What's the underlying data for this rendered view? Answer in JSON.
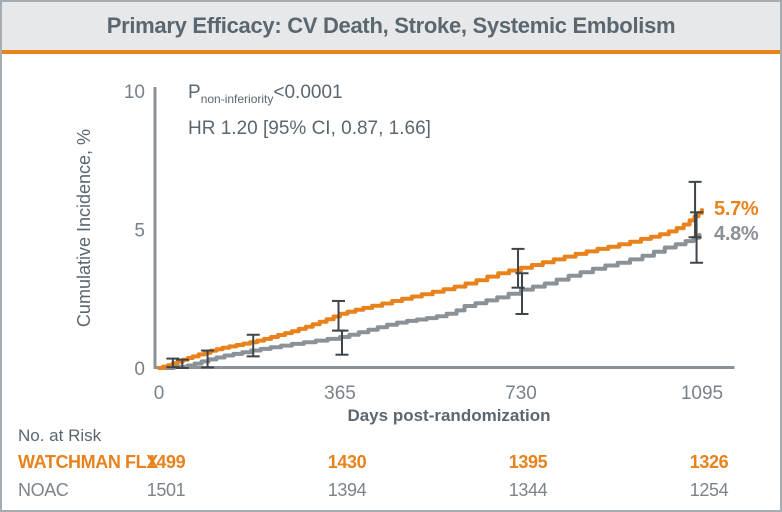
{
  "header": {
    "title": "Primary Efficacy: CV Death, Stroke, Systemic Embolism"
  },
  "stats": {
    "p_prefix": "P",
    "p_subscript": "non-inferiority",
    "p_value": "<0.0001",
    "hr_line": "HR 1.20 [95% CI, 0.87, 1.66]"
  },
  "chart_data": {
    "type": "line",
    "subtype": "kaplan-meier-step",
    "title": "Primary Efficacy: CV Death, Stroke, Systemic Embolism",
    "xlabel": "Days post-randomization",
    "ylabel": "Cumulative Incidence, %",
    "xlim": [
      0,
      1160
    ],
    "ylim": [
      0,
      10
    ],
    "x_ticks": [
      0,
      365,
      730,
      1095
    ],
    "y_ticks": [
      0,
      5,
      10
    ],
    "grid": false,
    "legend_position": "none",
    "series": [
      {
        "name": "WATCHMAN FLX",
        "color": "#E8821D",
        "end_label": "5.7%",
        "points": [
          [
            0,
            0
          ],
          [
            8,
            0.05
          ],
          [
            18,
            0.1
          ],
          [
            28,
            0.17
          ],
          [
            38,
            0.23
          ],
          [
            48,
            0.3
          ],
          [
            58,
            0.36
          ],
          [
            68,
            0.42
          ],
          [
            80,
            0.49
          ],
          [
            92,
            0.55
          ],
          [
            104,
            0.62
          ],
          [
            116,
            0.68
          ],
          [
            128,
            0.73
          ],
          [
            142,
            0.78
          ],
          [
            156,
            0.83
          ],
          [
            170,
            0.88
          ],
          [
            184,
            0.93
          ],
          [
            198,
            0.99
          ],
          [
            212,
            1.05
          ],
          [
            226,
            1.12
          ],
          [
            240,
            1.19
          ],
          [
            254,
            1.26
          ],
          [
            268,
            1.33
          ],
          [
            282,
            1.41
          ],
          [
            296,
            1.49
          ],
          [
            310,
            1.58
          ],
          [
            324,
            1.67
          ],
          [
            338,
            1.76
          ],
          [
            352,
            1.86
          ],
          [
            365,
            1.96
          ],
          [
            380,
            2.03
          ],
          [
            396,
            2.1
          ],
          [
            412,
            2.17
          ],
          [
            430,
            2.25
          ],
          [
            450,
            2.33
          ],
          [
            470,
            2.42
          ],
          [
            490,
            2.5
          ],
          [
            510,
            2.58
          ],
          [
            530,
            2.66
          ],
          [
            552,
            2.75
          ],
          [
            574,
            2.84
          ],
          [
            596,
            2.94
          ],
          [
            618,
            3.05
          ],
          [
            640,
            3.17
          ],
          [
            662,
            3.3
          ],
          [
            684,
            3.42
          ],
          [
            706,
            3.52
          ],
          [
            730,
            3.62
          ],
          [
            752,
            3.72
          ],
          [
            774,
            3.82
          ],
          [
            796,
            3.92
          ],
          [
            818,
            4.02
          ],
          [
            840,
            4.12
          ],
          [
            862,
            4.21
          ],
          [
            884,
            4.3
          ],
          [
            906,
            4.38
          ],
          [
            928,
            4.47
          ],
          [
            950,
            4.56
          ],
          [
            972,
            4.66
          ],
          [
            992,
            4.74
          ],
          [
            1010,
            4.83
          ],
          [
            1028,
            4.93
          ],
          [
            1044,
            5.05
          ],
          [
            1058,
            5.18
          ],
          [
            1070,
            5.33
          ],
          [
            1080,
            5.48
          ],
          [
            1088,
            5.6
          ],
          [
            1095,
            5.7
          ]
        ]
      },
      {
        "name": "NOAC",
        "color": "#8A9197",
        "end_label": "4.8%",
        "points": [
          [
            0,
            0
          ],
          [
            30,
            0.04
          ],
          [
            58,
            0.09
          ],
          [
            72,
            0.16
          ],
          [
            86,
            0.24
          ],
          [
            100,
            0.31
          ],
          [
            116,
            0.38
          ],
          [
            132,
            0.45
          ],
          [
            150,
            0.51
          ],
          [
            168,
            0.57
          ],
          [
            186,
            0.63
          ],
          [
            205,
            0.69
          ],
          [
            225,
            0.75
          ],
          [
            246,
            0.81
          ],
          [
            268,
            0.87
          ],
          [
            292,
            0.93
          ],
          [
            316,
            0.99
          ],
          [
            340,
            1.05
          ],
          [
            365,
            1.12
          ],
          [
            384,
            1.2
          ],
          [
            403,
            1.29
          ],
          [
            422,
            1.38
          ],
          [
            441,
            1.47
          ],
          [
            460,
            1.56
          ],
          [
            480,
            1.64
          ],
          [
            500,
            1.7
          ],
          [
            520,
            1.75
          ],
          [
            540,
            1.8
          ],
          [
            560,
            1.87
          ],
          [
            580,
            1.96
          ],
          [
            600,
            2.08
          ],
          [
            616,
            2.24
          ],
          [
            638,
            2.34
          ],
          [
            660,
            2.44
          ],
          [
            682,
            2.55
          ],
          [
            705,
            2.68
          ],
          [
            730,
            2.83
          ],
          [
            754,
            2.94
          ],
          [
            778,
            3.05
          ],
          [
            802,
            3.19
          ],
          [
            826,
            3.33
          ],
          [
            850,
            3.46
          ],
          [
            875,
            3.58
          ],
          [
            900,
            3.7
          ],
          [
            925,
            3.8
          ],
          [
            950,
            3.92
          ],
          [
            975,
            4.05
          ],
          [
            998,
            4.2
          ],
          [
            1020,
            4.35
          ],
          [
            1042,
            4.47
          ],
          [
            1062,
            4.58
          ],
          [
            1078,
            4.7
          ],
          [
            1090,
            4.8
          ]
        ]
      }
    ],
    "error_bars": [
      {
        "x": 28,
        "low": 0.03,
        "high": 0.34
      },
      {
        "x": 47,
        "low": 0.0,
        "high": 0.3
      },
      {
        "x": 98,
        "low": 0.02,
        "high": 0.63
      },
      {
        "x": 190,
        "low": 0.42,
        "high": 1.2
      },
      {
        "x": 362,
        "low": 1.35,
        "high": 2.42
      },
      {
        "x": 369,
        "low": 0.48,
        "high": 1.35
      },
      {
        "x": 724,
        "low": 2.9,
        "high": 4.3
      },
      {
        "x": 732,
        "low": 1.95,
        "high": 3.42
      },
      {
        "x": 1081,
        "low": 4.72,
        "high": 6.72
      },
      {
        "x": 1084,
        "low": 3.8,
        "high": 5.62
      }
    ],
    "annotations": [
      "P non-inferiority <0.0001",
      "HR 1.20 [95% CI, 0.87, 1.66]"
    ]
  },
  "risk_table": {
    "heading": "No. at Risk",
    "columns_days": [
      0,
      365,
      730,
      1095
    ],
    "rows": [
      {
        "label": "WATCHMAN FLX",
        "class": "watchman",
        "color": "#E8821D",
        "values": [
          "1499",
          "1430",
          "1395",
          "1326"
        ]
      },
      {
        "label": "NOAC",
        "class": "noac",
        "color": "#7C848B",
        "values": [
          "1501",
          "1394",
          "1344",
          "1254"
        ]
      }
    ]
  },
  "colors": {
    "accent": "#E8821D",
    "watchman": "#E8821D",
    "noac": "#8A9197",
    "heading_text": "#5B6770",
    "tick_text": "#79828A",
    "axis_line": "#8A9197",
    "error_bar": "#3F4449",
    "title_bg": "#E6E8E9",
    "frame_border": "#A6ADB2"
  }
}
